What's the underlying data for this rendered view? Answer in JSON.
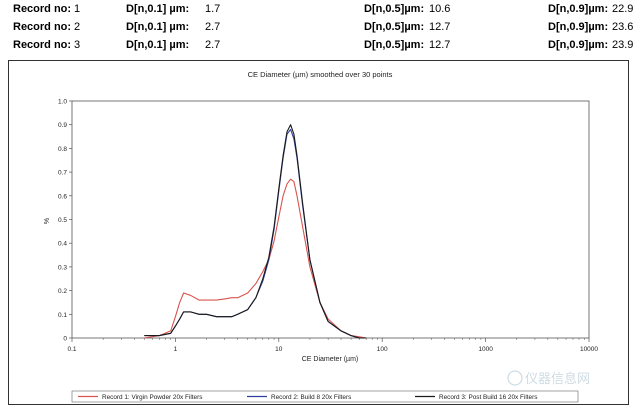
{
  "records": [
    {
      "record_label": "Record no:",
      "record_no": "1",
      "d10_label": "D[n,0.1] µm:",
      "d10": "1.7",
      "d50_label": "D[n,0.5]µm:",
      "d50": "10.6",
      "d90_label": "D[n,0.9]µm:",
      "d90": "22.9"
    },
    {
      "record_label": "Record no:",
      "record_no": "2",
      "d10_label": "D[n,0.1] µm:",
      "d10": "2.7",
      "d50_label": "D[n,0.5]µm:",
      "d50": "12.7",
      "d90_label": "D[n,0.9]µm:",
      "d90": "23.6"
    },
    {
      "record_label": "Record no:",
      "record_no": "3",
      "d10_label": "D[n,0.1] µm:",
      "d10": "2.7",
      "d50_label": "D[n,0.5]µm:",
      "d50": "12.7",
      "d90_label": "D[n,0.9]µm:",
      "d90": "23.9"
    }
  ],
  "chart_data": {
    "type": "line",
    "title": "CE Diameter (µm) smoothed over 30 points",
    "xlabel": "CE Diameter (µm)",
    "ylabel": "%",
    "xscale": "log",
    "xlim": [
      0.1,
      10000
    ],
    "ylim": [
      0,
      1.0
    ],
    "x_ticks": [
      0.1,
      1,
      10,
      100,
      1000,
      10000
    ],
    "x_tick_labels": [
      "0.1",
      "1",
      "10",
      "100",
      "1000",
      "10000"
    ],
    "y_ticks": [
      0,
      0.1,
      0.2,
      0.3,
      0.4,
      0.5,
      0.6,
      0.7,
      0.8,
      0.9,
      1.0
    ],
    "y_tick_labels": [
      "0",
      "0.1",
      "0.2",
      "0.3",
      "0.4",
      "0.5",
      "0.6",
      "0.7",
      "0.8",
      "0.9",
      "1.0"
    ],
    "grid": false,
    "legend_position": "bottom",
    "series": [
      {
        "name": "Record 1: Virgin Powder 20x Filters",
        "color": "#d9534f",
        "x": [
          0.5,
          0.7,
          0.9,
          1.0,
          1.1,
          1.2,
          1.4,
          1.7,
          2.0,
          2.5,
          3.0,
          3.5,
          4.0,
          5.0,
          6.0,
          7.0,
          8.0,
          9.0,
          10.0,
          11.0,
          12.0,
          13.0,
          14.0,
          15.0,
          17.0,
          20.0,
          25.0,
          30.0,
          40.0,
          50.0,
          60.0,
          70.0
        ],
        "y": [
          0.0,
          0.01,
          0.03,
          0.09,
          0.15,
          0.19,
          0.18,
          0.16,
          0.16,
          0.16,
          0.165,
          0.17,
          0.17,
          0.19,
          0.23,
          0.28,
          0.33,
          0.41,
          0.51,
          0.6,
          0.65,
          0.67,
          0.66,
          0.6,
          0.47,
          0.3,
          0.15,
          0.08,
          0.03,
          0.01,
          0.005,
          0.0
        ]
      },
      {
        "name": "Record 2: Build 8 20x Filters",
        "color": "#2e3f9e",
        "x": [
          0.5,
          0.7,
          0.9,
          1.0,
          1.1,
          1.2,
          1.4,
          1.7,
          2.0,
          2.5,
          3.0,
          3.5,
          4.0,
          5.0,
          6.0,
          7.0,
          8.0,
          9.0,
          10.0,
          11.0,
          12.0,
          13.0,
          14.0,
          15.0,
          17.0,
          20.0,
          25.0,
          30.0,
          40.0,
          50.0,
          60.0,
          70.0
        ],
        "y": [
          0.01,
          0.01,
          0.02,
          0.05,
          0.08,
          0.11,
          0.11,
          0.1,
          0.1,
          0.09,
          0.09,
          0.09,
          0.1,
          0.12,
          0.17,
          0.24,
          0.33,
          0.46,
          0.62,
          0.76,
          0.86,
          0.88,
          0.84,
          0.76,
          0.56,
          0.33,
          0.15,
          0.07,
          0.03,
          0.01,
          0.0,
          0.0
        ]
      },
      {
        "name": "Record 3: Post Build 16 20x Filters",
        "color": "#1a1a1a",
        "x": [
          0.5,
          0.7,
          0.9,
          1.0,
          1.1,
          1.2,
          1.4,
          1.7,
          2.0,
          2.5,
          3.0,
          3.5,
          4.0,
          5.0,
          6.0,
          7.0,
          8.0,
          9.0,
          10.0,
          11.0,
          12.0,
          13.0,
          14.0,
          15.0,
          17.0,
          20.0,
          25.0,
          30.0,
          40.0,
          50.0,
          60.0,
          70.0
        ],
        "y": [
          0.01,
          0.01,
          0.02,
          0.05,
          0.08,
          0.11,
          0.11,
          0.1,
          0.1,
          0.09,
          0.09,
          0.09,
          0.1,
          0.12,
          0.17,
          0.25,
          0.34,
          0.47,
          0.63,
          0.77,
          0.87,
          0.9,
          0.86,
          0.77,
          0.57,
          0.33,
          0.15,
          0.07,
          0.03,
          0.01,
          0.0,
          0.0
        ]
      }
    ]
  },
  "watermark": {
    "text": "仪器信息网"
  }
}
